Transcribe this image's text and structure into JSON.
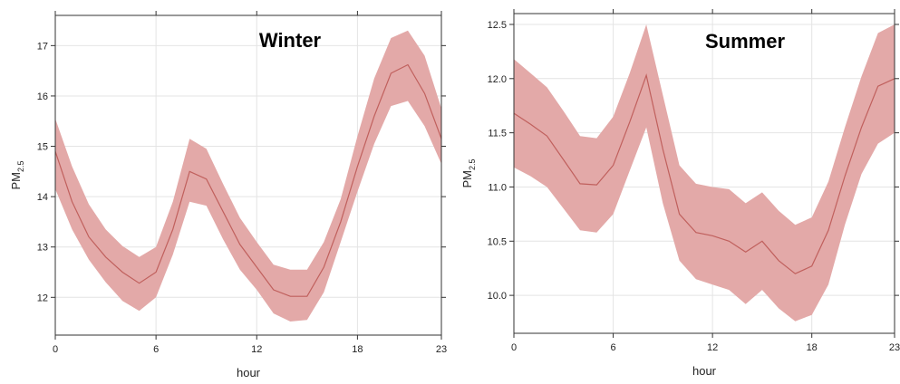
{
  "chart_data": [
    {
      "type": "line",
      "title": "Winter",
      "xlabel": "hour",
      "ylabel_main": "PM",
      "ylabel_sub": "2.5",
      "xlim": [
        0,
        23
      ],
      "ylim": [
        11.25,
        17.6
      ],
      "x_ticks": [
        0,
        6,
        12,
        18,
        23
      ],
      "y_ticks": [
        12,
        13,
        14,
        15,
        16,
        17
      ],
      "grid": true,
      "band_color": "#e3a9a8",
      "line_color": "#c0605d",
      "x": [
        0,
        1,
        2,
        3,
        4,
        5,
        6,
        7,
        8,
        9,
        10,
        11,
        12,
        13,
        14,
        15,
        16,
        17,
        18,
        19,
        20,
        21,
        22,
        23
      ],
      "series": [
        {
          "mean": [
            14.9,
            13.9,
            13.2,
            12.8,
            12.5,
            12.28,
            12.5,
            13.35,
            14.5,
            14.35,
            13.7,
            13.05,
            12.6,
            12.15,
            12.02,
            12.02,
            12.6,
            13.5,
            14.6,
            15.6,
            16.45,
            16.62,
            16.05,
            15.15
          ],
          "lower": [
            14.15,
            13.35,
            12.75,
            12.3,
            11.93,
            11.73,
            12.0,
            12.85,
            13.9,
            13.82,
            13.15,
            12.55,
            12.15,
            11.68,
            11.52,
            11.55,
            12.1,
            13.1,
            14.1,
            15.05,
            15.8,
            15.9,
            15.4,
            14.65
          ],
          "upper": [
            15.55,
            14.6,
            13.85,
            13.35,
            13.02,
            12.8,
            13.0,
            13.9,
            15.15,
            14.95,
            14.25,
            13.58,
            13.1,
            12.65,
            12.55,
            12.55,
            13.1,
            13.95,
            15.2,
            16.35,
            17.15,
            17.3,
            16.8,
            15.75
          ]
        }
      ]
    },
    {
      "type": "line",
      "title": "Summer",
      "xlabel": "hour",
      "ylabel_main": "PM",
      "ylabel_sub": "2.5",
      "xlim": [
        0,
        23
      ],
      "ylim": [
        9.65,
        12.6
      ],
      "x_ticks": [
        0,
        6,
        12,
        18,
        23
      ],
      "y_ticks": [
        10.0,
        10.5,
        11.0,
        11.5,
        12.0,
        12.5
      ],
      "y_tick_labels": [
        "10.0",
        "10.5",
        "11.0",
        "11.5",
        "12.0",
        "12.5"
      ],
      "grid": true,
      "band_color": "#e3a9a8",
      "line_color": "#c0605d",
      "x": [
        0,
        1,
        2,
        3,
        4,
        5,
        6,
        7,
        8,
        9,
        10,
        11,
        12,
        13,
        14,
        15,
        16,
        17,
        18,
        19,
        20,
        21,
        22,
        23
      ],
      "series": [
        {
          "mean": [
            11.68,
            11.58,
            11.47,
            11.25,
            11.03,
            11.02,
            11.2,
            11.6,
            12.03,
            11.35,
            10.75,
            10.58,
            10.55,
            10.5,
            10.4,
            10.5,
            10.32,
            10.2,
            10.27,
            10.6,
            11.1,
            11.55,
            11.93,
            12.0
          ],
          "lower": [
            11.18,
            11.1,
            11.0,
            10.8,
            10.6,
            10.58,
            10.75,
            11.15,
            11.55,
            10.85,
            10.32,
            10.15,
            10.1,
            10.05,
            9.92,
            10.05,
            9.88,
            9.76,
            9.82,
            10.1,
            10.65,
            11.12,
            11.4,
            11.5
          ],
          "upper": [
            12.18,
            12.05,
            11.92,
            11.7,
            11.47,
            11.45,
            11.65,
            12.05,
            12.5,
            11.85,
            11.2,
            11.03,
            11.0,
            10.98,
            10.85,
            10.95,
            10.78,
            10.65,
            10.72,
            11.05,
            11.55,
            12.02,
            12.42,
            12.5
          ]
        }
      ]
    }
  ]
}
